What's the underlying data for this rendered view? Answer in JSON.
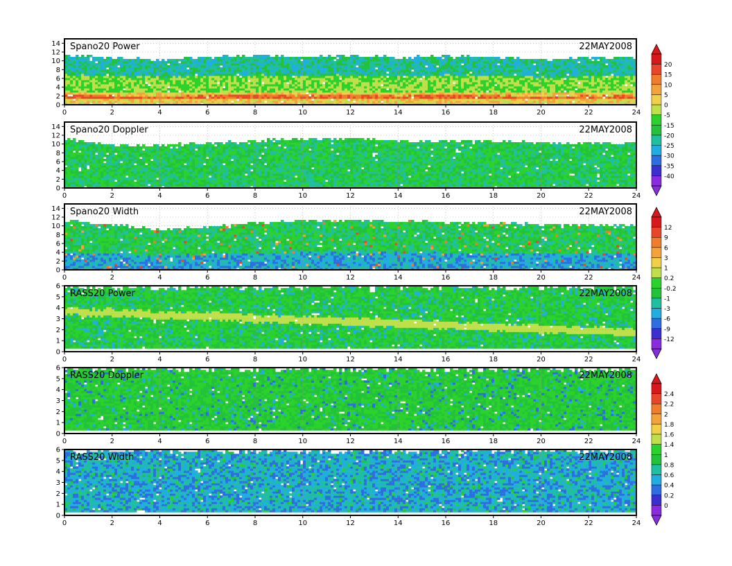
{
  "chart_data": [
    {
      "type": "heatmap",
      "title": "Spano20 Power",
      "date": "22MAY2008",
      "x_ticks": [
        0,
        2,
        4,
        6,
        8,
        10,
        12,
        14,
        16,
        18,
        20,
        22,
        24
      ],
      "y_ticks": [
        0,
        2,
        4,
        6,
        8,
        10,
        12,
        14
      ],
      "xlim": [
        0,
        24
      ],
      "ylim": [
        0,
        15
      ],
      "data_top": [
        11,
        10.5,
        10,
        10.5,
        11,
        10.5,
        11,
        10.5,
        11,
        10.5,
        10,
        10.5,
        10.5
      ],
      "colorbar_group": 0,
      "grid": true
    },
    {
      "type": "heatmap",
      "title": "Spano20 Doppler",
      "date": "22MAY2008",
      "x_ticks": [
        0,
        2,
        4,
        6,
        8,
        10,
        12,
        14,
        16,
        18,
        20,
        22,
        24
      ],
      "y_ticks": [
        0,
        2,
        4,
        6,
        8,
        10,
        12,
        14
      ],
      "xlim": [
        0,
        24
      ],
      "ylim": [
        0,
        15
      ],
      "data_top": [
        11,
        9.5,
        9.5,
        10,
        10.5,
        11,
        11,
        10.5,
        10.5,
        10.5,
        10,
        10,
        10
      ],
      "colorbar_group": 0,
      "grid": true
    },
    {
      "type": "heatmap",
      "title": "Spano20 Width",
      "date": "22MAY2008",
      "x_ticks": [
        0,
        2,
        4,
        6,
        8,
        10,
        12,
        14,
        16,
        18,
        20,
        22,
        24
      ],
      "y_ticks": [
        0,
        2,
        4,
        6,
        8,
        10,
        12,
        14
      ],
      "xlim": [
        0,
        24
      ],
      "ylim": [
        0,
        15
      ],
      "data_top": [
        11,
        10,
        9,
        9.5,
        10.5,
        11,
        11,
        11,
        10.5,
        10.5,
        10,
        10,
        10
      ],
      "colorbar_group": 1,
      "grid": true
    },
    {
      "type": "heatmap",
      "title": "RASS20 Power",
      "date": "22MAY2008",
      "x_ticks": [
        0,
        2,
        4,
        6,
        8,
        10,
        12,
        14,
        16,
        18,
        20,
        22,
        24
      ],
      "y_ticks": [
        0,
        1,
        2,
        3,
        4,
        5,
        6
      ],
      "xlim": [
        0,
        24
      ],
      "ylim": [
        0,
        6
      ],
      "data_top": [
        5.8,
        5.8,
        5.8,
        5.8,
        5.8,
        5.8,
        5.8,
        5.8,
        5.8,
        5.8,
        5.8,
        5.8,
        5.8
      ],
      "colorbar_group": 1,
      "grid": true
    },
    {
      "type": "heatmap",
      "title": "RASS20 Doppler",
      "date": "22MAY2008",
      "x_ticks": [
        0,
        2,
        4,
        6,
        8,
        10,
        12,
        14,
        16,
        18,
        20,
        22,
        24
      ],
      "y_ticks": [
        0,
        1,
        2,
        3,
        4,
        5,
        6
      ],
      "xlim": [
        0,
        24
      ],
      "ylim": [
        0,
        6
      ],
      "data_top": [
        5.8,
        5.8,
        5.8,
        5.8,
        5.8,
        5.8,
        5.8,
        5.8,
        5.8,
        5.8,
        5.8,
        5.8,
        5.8
      ],
      "colorbar_group": 2,
      "grid": true
    },
    {
      "type": "heatmap",
      "title": "RASS20 Width",
      "date": "22MAY2008",
      "x_ticks": [
        0,
        2,
        4,
        6,
        8,
        10,
        12,
        14,
        16,
        18,
        20,
        22,
        24
      ],
      "y_ticks": [
        0,
        1,
        2,
        3,
        4,
        5,
        6
      ],
      "xlim": [
        0,
        24
      ],
      "ylim": [
        0,
        6
      ],
      "data_top": [
        5.8,
        5.8,
        5.8,
        5.8,
        5.8,
        5.8,
        5.8,
        5.8,
        5.8,
        5.8,
        5.8,
        5.8,
        5.8
      ],
      "colorbar_group": 2,
      "grid": true
    }
  ],
  "colorbars": [
    {
      "labels": [
        "20",
        "15",
        "10",
        "5",
        "0",
        "-5",
        "-15",
        "-20",
        "-25",
        "-30",
        "-35",
        "-40"
      ]
    },
    {
      "labels": [
        "12",
        "9",
        "6",
        "3",
        "1",
        "0.2",
        "-0.2",
        "-1",
        "-3",
        "-6",
        "-9",
        "-12"
      ]
    },
    {
      "labels": [
        "2.4",
        "2.2",
        "2",
        "1.8",
        "1.6",
        "1.4",
        "1",
        "0.8",
        "0.6",
        "0.4",
        "0.2",
        "0"
      ]
    }
  ],
  "colors": {
    "scale": [
      "#d7191c",
      "#e8452a",
      "#f07c2c",
      "#f3a33a",
      "#f0d048",
      "#bfe04a",
      "#2bd22b",
      "#22c23a",
      "#1fbfa0",
      "#20aee0",
      "#2d6fe0",
      "#3a2fd0",
      "#8a2be0"
    ],
    "frame": "#000000",
    "grid": "#999999",
    "empty": "#ffffff"
  }
}
